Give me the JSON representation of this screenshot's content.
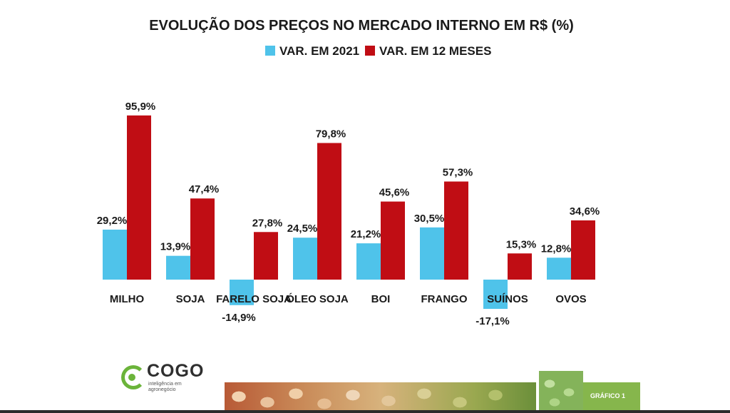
{
  "chart_data": {
    "type": "bar",
    "title": "EVOLUÇÃO DOS PREÇOS NO MERCADO INTERNO EM R$ (%)",
    "categories": [
      "MILHO",
      "SOJA",
      "FARELO SOJA",
      "ÓLEO SOJA",
      "BOI",
      "FRANGO",
      "SUÍNOS",
      "OVOS"
    ],
    "series": [
      {
        "name": "VAR. EM 2021",
        "color": "#4fc3ea",
        "values": [
          29.2,
          13.9,
          -14.9,
          24.5,
          21.2,
          30.5,
          -17.1,
          12.8
        ],
        "labels": [
          "29,2%",
          "13,9%",
          "-14,9%",
          "24,5%",
          "21,2%",
          "30,5%",
          "-17,1%",
          "12,8%"
        ]
      },
      {
        "name": "VAR. EM 12 MESES",
        "color": "#c00d14",
        "values": [
          95.9,
          47.4,
          27.8,
          79.8,
          45.6,
          57.3,
          15.3,
          34.6
        ],
        "labels": [
          "95,9%",
          "47,4%",
          "27,8%",
          "79,8%",
          "45,6%",
          "57,3%",
          "15,3%",
          "34,6%"
        ]
      }
    ],
    "legend_position": "top-center",
    "grid": false
  },
  "footer": {
    "logo_name": "COGO",
    "logo_tagline": "inteligência em agronegócio",
    "figure_label": "GRÁFICO 1"
  },
  "colors": {
    "accent_green": "#6bb43a"
  }
}
